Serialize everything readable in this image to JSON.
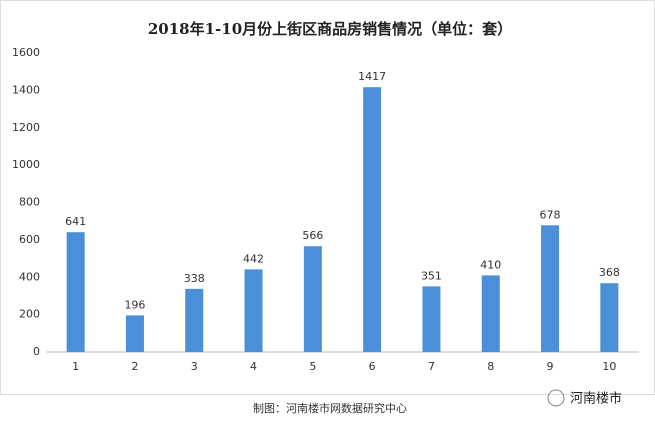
{
  "chart_data": {
    "type": "bar",
    "title": "2018年1-10月份上街区商品房销售情况（单位：套）",
    "categories": [
      "1",
      "2",
      "3",
      "4",
      "5",
      "6",
      "7",
      "8",
      "9",
      "10"
    ],
    "values": [
      641,
      196,
      338,
      442,
      566,
      1417,
      351,
      410,
      678,
      368
    ],
    "color": "#4a8fd8",
    "ylim": [
      0,
      1600
    ],
    "yticks": [
      0,
      200,
      400,
      600,
      800,
      1000,
      1200,
      1400,
      1600
    ],
    "grid": false,
    "source": "制图：河南楼市网数据研究中心",
    "logo": "河南楼市"
  }
}
